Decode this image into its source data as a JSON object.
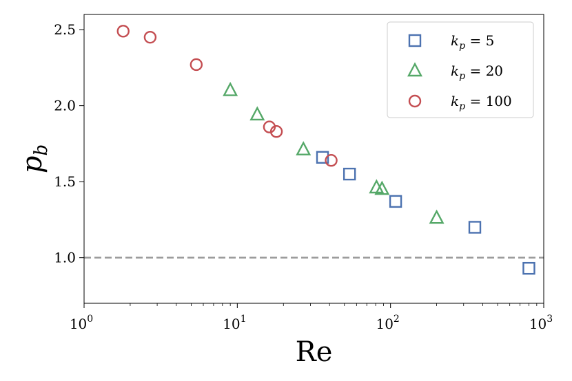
{
  "chart_data": {
    "type": "scatter",
    "title": "",
    "xlabel": "Re",
    "ylabel": "p_b",
    "xscale": "log",
    "xlim": [
      1,
      1000
    ],
    "ylim": [
      0.7,
      2.6
    ],
    "x_ticks": [
      1,
      10,
      100,
      1000
    ],
    "x_tick_labels": [
      {
        "base": "10",
        "exp": "0"
      },
      {
        "base": "10",
        "exp": "1"
      },
      {
        "base": "10",
        "exp": "2"
      },
      {
        "base": "10",
        "exp": "3"
      }
    ],
    "y_ticks": [
      1.0,
      1.5,
      2.0,
      2.5
    ],
    "y_tick_labels": [
      "1.0",
      "1.5",
      "2.0",
      "2.5"
    ],
    "reference_line": {
      "y": 1.0,
      "style": "dashed",
      "color": "#999999"
    },
    "legend_position": "top-right",
    "series": [
      {
        "name": "k_p = 5",
        "label_var": "k",
        "label_sub": "p",
        "label_rest": " = 5",
        "marker": "square",
        "color": "#4c72b0",
        "points": [
          [
            36,
            1.66
          ],
          [
            54,
            1.55
          ],
          [
            108,
            1.37
          ],
          [
            355,
            1.2
          ],
          [
            800,
            0.93
          ]
        ]
      },
      {
        "name": "k_p = 20",
        "label_var": "k",
        "label_sub": "p",
        "label_rest": " = 20",
        "marker": "triangle",
        "color": "#55a868",
        "points": [
          [
            9,
            2.1
          ],
          [
            13.5,
            1.94
          ],
          [
            27,
            1.71
          ],
          [
            81,
            1.46
          ],
          [
            88,
            1.45
          ],
          [
            200,
            1.26
          ]
        ]
      },
      {
        "name": "k_p = 100",
        "label_var": "k",
        "label_sub": "p",
        "label_rest": " = 100",
        "marker": "circle",
        "color": "#c44e52",
        "points": [
          [
            1.8,
            2.49
          ],
          [
            2.7,
            2.45
          ],
          [
            5.4,
            2.27
          ],
          [
            16.2,
            1.86
          ],
          [
            18,
            1.83
          ],
          [
            41,
            1.64
          ]
        ]
      }
    ]
  }
}
